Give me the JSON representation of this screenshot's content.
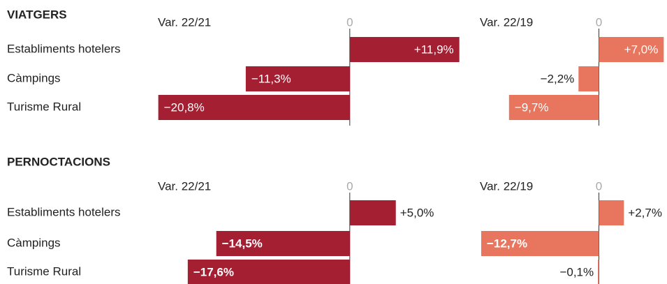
{
  "chart_data": [
    {
      "type": "bar",
      "title": "VIATGERS",
      "categories": [
        "Establiments hotelers",
        "Càmpings",
        "Turisme Rural"
      ],
      "xticks": [
        0
      ],
      "label_bold": false,
      "series": [
        {
          "name": "Var. 22/21",
          "color": "#a51f32",
          "xlim": [
            -21,
            12
          ],
          "values": [
            11.9,
            -11.3,
            -20.8
          ],
          "value_labels": [
            "+11,9%",
            "−11,3%",
            "−20,8%"
          ]
        },
        {
          "name": "Var. 22/19",
          "color": "#e8765f",
          "xlim": [
            -13,
            7.2
          ],
          "values": [
            7.0,
            -2.2,
            -9.7
          ],
          "value_labels": [
            "+7,0%",
            "−2,2%",
            "−9,7%"
          ]
        }
      ]
    },
    {
      "type": "bar",
      "title": "PERNOCTACIONS",
      "categories": [
        "Establiments hotelers",
        "Càmpings",
        "Turisme Rural"
      ],
      "xticks": [
        0
      ],
      "label_bold": true,
      "series": [
        {
          "name": "Var. 22/21",
          "color": "#a51f32",
          "xlim": [
            -21,
            12
          ],
          "values": [
            5.0,
            -14.5,
            -17.6
          ],
          "value_labels": [
            "+5,0%",
            "−14,5%",
            "−17,6%"
          ]
        },
        {
          "name": "Var. 22/19",
          "color": "#e8765f",
          "xlim": [
            -13,
            7.2
          ],
          "values": [
            2.7,
            -12.7,
            -0.1
          ],
          "value_labels": [
            "+2,7%",
            "−12,7%",
            "−0,1%"
          ]
        }
      ]
    }
  ]
}
